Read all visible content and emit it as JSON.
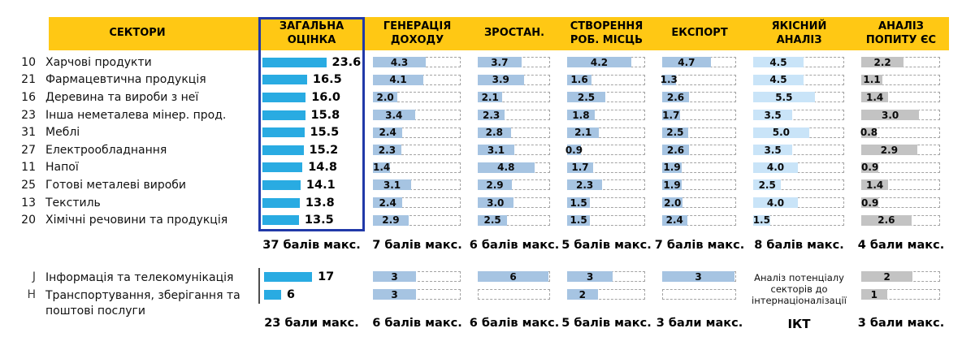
{
  "chart_data": {
    "type": "bar",
    "sectors_header": "СЕКТОРИ",
    "qual_note": "Аналіз потенціалу секторів до інтернаціоналізації",
    "columns": [
      {
        "key": "total",
        "label": "ЗАГАЛЬНА\nОЦІНКА",
        "max": 37,
        "max_label": "37 балів макс.",
        "bottom_max": 23,
        "bottom_max_label": "23 бали макс.",
        "color": "#29ABE2"
      },
      {
        "key": "revenue",
        "label": "ГЕНЕРАЦІЯ\nДОХОДУ",
        "max": 7,
        "max_label": "7 балів макс.",
        "bottom_max": 6,
        "bottom_max_label": "6 балів макс.",
        "color": "#A6C4E2"
      },
      {
        "key": "growth",
        "label": "ЗРОСТАН.",
        "max": 6,
        "max_label": "6 балів макс.",
        "bottom_max": 6,
        "bottom_max_label": "6 балів макс.",
        "color": "#A6C4E2"
      },
      {
        "key": "jobs",
        "label": "СТВОРЕННЯ\nРОБ. МІСЦЬ",
        "max": 5,
        "max_label": "5 балів макс.",
        "bottom_max": 5,
        "bottom_max_label": "5 балів макс.",
        "color": "#A6C4E2"
      },
      {
        "key": "export",
        "label": "ЕКСПОРТ",
        "max": 7,
        "max_label": "7 балів макс.",
        "bottom_max": 3,
        "bottom_max_label": "3 бали макс.",
        "color": "#A6C4E2"
      },
      {
        "key": "qual",
        "label": "ЯКІСНИЙ\nАНАЛІЗ",
        "max": 8,
        "max_label": "8 балів макс.",
        "bottom_max": null,
        "bottom_max_label": "ІКТ",
        "color": "#C9E4F8"
      },
      {
        "key": "demand",
        "label": "АНАЛІЗ\nПОПИТУ ЄС",
        "max": 4,
        "max_label": "4 бали макс.",
        "bottom_max": 3,
        "bottom_max_label": "3 бали макс.",
        "color": "#C3C3C3"
      }
    ],
    "rows": [
      {
        "code": "10",
        "name": "Харчові продукти",
        "values": [
          "23.6",
          "4.3",
          "3.7",
          "4.2",
          "4.7",
          "4.5",
          "2.2"
        ]
      },
      {
        "code": "21",
        "name": "Фармацевтична продукція",
        "values": [
          "16.5",
          "4.1",
          "3.9",
          "1.6",
          "1.3",
          "4.5",
          "1.1"
        ]
      },
      {
        "code": "16",
        "name": "Деревина та вироби з неї",
        "values": [
          "16.0",
          "2.0",
          "2.1",
          "2.5",
          "2.6",
          "5.5",
          "1.4"
        ]
      },
      {
        "code": "23",
        "name": "Інша неметалева мінер. прод.",
        "values": [
          "15.8",
          "3.4",
          "2.3",
          "1.8",
          "1.7",
          "3.5",
          "3.0"
        ]
      },
      {
        "code": "31",
        "name": "Меблі",
        "values": [
          "15.5",
          "2.4",
          "2.8",
          "2.1",
          "2.5",
          "5.0",
          "0.8"
        ]
      },
      {
        "code": "27",
        "name": "Електрообладнання",
        "values": [
          "15.2",
          "2.3",
          "3.1",
          "0.9",
          "2.6",
          "3.5",
          "2.9"
        ]
      },
      {
        "code": "11",
        "name": "Напої",
        "values": [
          "14.8",
          "1.4",
          "4.8",
          "1.7",
          "1.9",
          "4.0",
          "0.9"
        ]
      },
      {
        "code": "25",
        "name": "Готові металеві вироби",
        "values": [
          "14.1",
          "3.1",
          "2.9",
          "2.3",
          "1.9",
          "2.5",
          "1.4"
        ]
      },
      {
        "code": "13",
        "name": "Текстиль",
        "values": [
          "13.8",
          "2.4",
          "3.0",
          "1.5",
          "2.0",
          "4.0",
          "0.9"
        ]
      },
      {
        "code": "20",
        "name": "Хімічні речовини та продукція",
        "values": [
          "13.5",
          "2.9",
          "2.5",
          "1.5",
          "2.4",
          "1.5",
          "2.6"
        ]
      }
    ],
    "bottom_rows": [
      {
        "code": "J",
        "name": "Інформація та телекомунікація",
        "values": [
          "17",
          "3",
          "6",
          "3",
          "3",
          null,
          "2"
        ]
      },
      {
        "code": "H",
        "name": "Транспортування, зберігання та поштові послуги",
        "values": [
          "6",
          "3",
          "",
          "2",
          "",
          null,
          "1"
        ]
      }
    ]
  }
}
